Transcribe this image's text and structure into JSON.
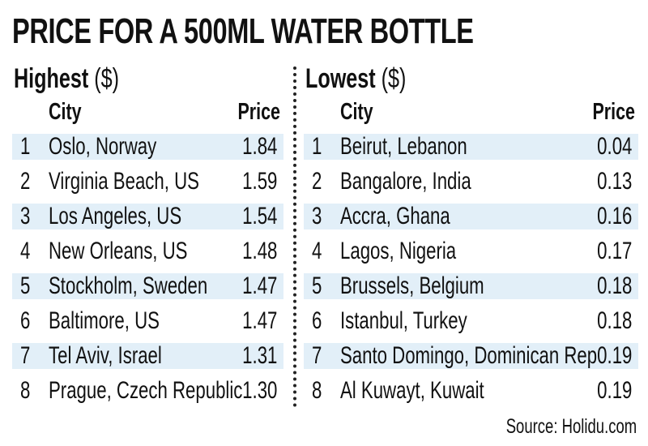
{
  "title": "PRICE FOR A 500ML WATER BOTTLE",
  "colors": {
    "row_shade": "#e2eff8",
    "text": "#111111"
  },
  "source": "Source: Holidu.com",
  "chart_data": {
    "type": "table",
    "title": "PRICE FOR A 500ML WATER BOTTLE",
    "tables": [
      {
        "heading": "Highest",
        "unit": "($)",
        "columns": [
          "City",
          "Price"
        ],
        "rows": [
          {
            "rank": "1",
            "city": "Oslo, Norway",
            "price": "1.84"
          },
          {
            "rank": "2",
            "city": "Virginia Beach, US",
            "price": "1.59"
          },
          {
            "rank": "3",
            "city": "Los Angeles, US",
            "price": "1.54"
          },
          {
            "rank": "4",
            "city": "New Orleans, US",
            "price": "1.48"
          },
          {
            "rank": "5",
            "city": "Stockholm, Sweden",
            "price": "1.47"
          },
          {
            "rank": "6",
            "city": "Baltimore, US",
            "price": "1.47"
          },
          {
            "rank": "7",
            "city": "Tel Aviv, Israel",
            "price": "1.31"
          },
          {
            "rank": "8",
            "city": "Prague, Czech Republic",
            "price": "1.30"
          }
        ]
      },
      {
        "heading": "Lowest",
        "unit": "($)",
        "columns": [
          "City",
          "Price"
        ],
        "rows": [
          {
            "rank": "1",
            "city": "Beirut, Lebanon",
            "price": "0.04"
          },
          {
            "rank": "2",
            "city": "Bangalore, India",
            "price": "0.13"
          },
          {
            "rank": "3",
            "city": "Accra, Ghana",
            "price": "0.16"
          },
          {
            "rank": "4",
            "city": "Lagos, Nigeria",
            "price": "0.17"
          },
          {
            "rank": "5",
            "city": "Brussels, Belgium",
            "price": "0.18"
          },
          {
            "rank": "6",
            "city": "Istanbul, Turkey",
            "price": "0.18"
          },
          {
            "rank": "7",
            "city": "Santo Domingo, Dominican Rep",
            "price": "0.19"
          },
          {
            "rank": "8",
            "city": "Al Kuwayt, Kuwait",
            "price": "0.19"
          }
        ]
      }
    ]
  }
}
